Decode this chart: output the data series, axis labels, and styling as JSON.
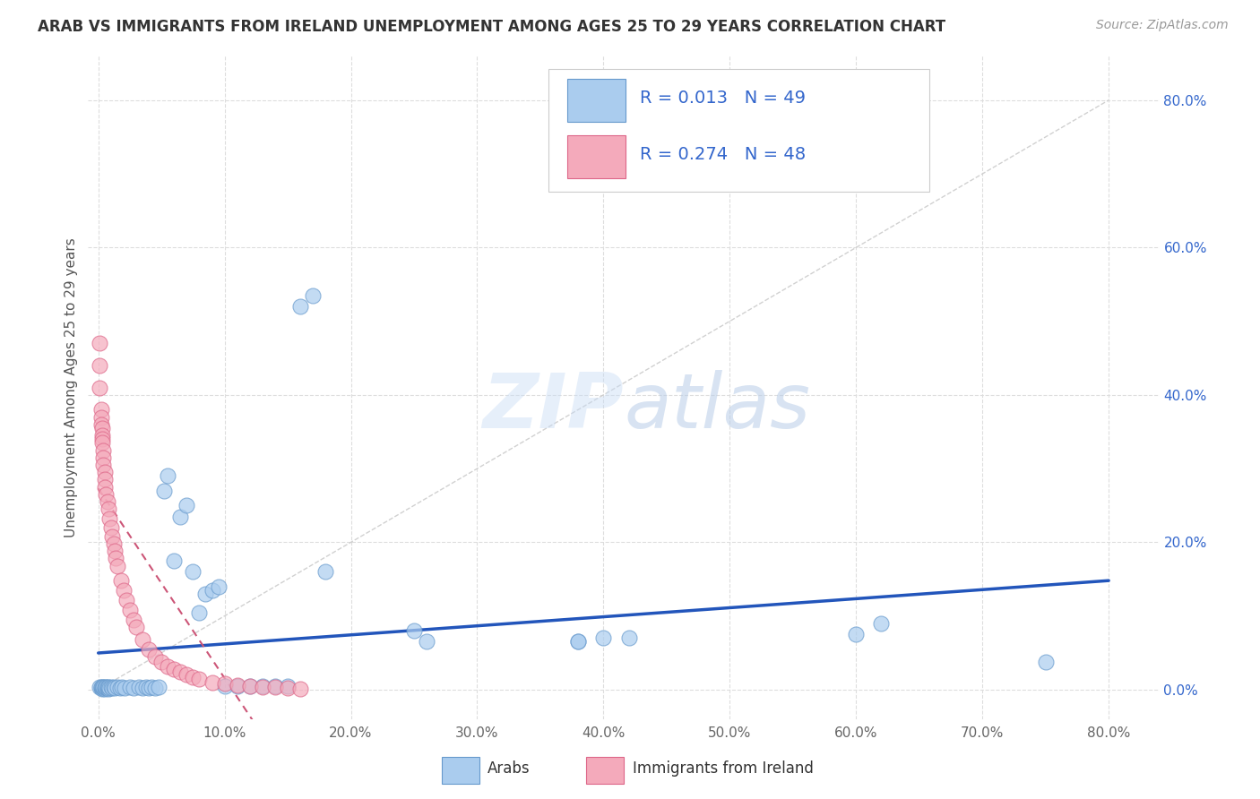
{
  "title": "ARAB VS IMMIGRANTS FROM IRELAND UNEMPLOYMENT AMONG AGES 25 TO 29 YEARS CORRELATION CHART",
  "source": "Source: ZipAtlas.com",
  "ylabel": "Unemployment Among Ages 25 to 29 years",
  "xlim_min": -0.008,
  "xlim_max": 0.84,
  "ylim_min": -0.04,
  "ylim_max": 0.86,
  "xtick_vals": [
    0.0,
    0.1,
    0.2,
    0.3,
    0.4,
    0.5,
    0.6,
    0.7,
    0.8
  ],
  "ytick_vals": [
    0.0,
    0.2,
    0.4,
    0.6,
    0.8
  ],
  "legend_text_color": "#3366CC",
  "arab_color": "#AACCEE",
  "ireland_color": "#F4AABB",
  "arab_edge_color": "#6699CC",
  "ireland_edge_color": "#DD6688",
  "regression_arab_color": "#2255BB",
  "regression_ireland_color": "#CC5577",
  "identity_line_color": "#CCCCCC",
  "background_color": "#FFFFFF",
  "grid_color": "#DDDDDD",
  "watermark_zip": "ZIP",
  "watermark_atlas": "atlas",
  "arab_x": [
    0.001,
    0.002,
    0.002,
    0.003,
    0.003,
    0.004,
    0.004,
    0.005,
    0.005,
    0.006,
    0.006,
    0.007,
    0.007,
    0.008,
    0.008,
    0.009,
    0.01,
    0.011,
    0.012,
    0.013,
    0.015,
    0.017,
    0.019,
    0.021,
    0.025,
    0.028,
    0.032,
    0.035,
    0.038,
    0.04,
    0.042,
    0.045,
    0.048,
    0.052,
    0.055,
    0.06,
    0.065,
    0.07,
    0.075,
    0.08,
    0.085,
    0.09,
    0.095,
    0.1,
    0.11,
    0.12,
    0.13,
    0.14,
    0.15,
    0.16,
    0.17,
    0.18,
    0.25,
    0.26,
    0.38,
    0.4,
    0.38,
    0.42,
    0.6,
    0.62,
    0.75
  ],
  "arab_y": [
    0.003,
    0.002,
    0.004,
    0.001,
    0.003,
    0.002,
    0.004,
    0.001,
    0.003,
    0.002,
    0.004,
    0.002,
    0.003,
    0.001,
    0.004,
    0.002,
    0.003,
    0.002,
    0.004,
    0.002,
    0.003,
    0.002,
    0.004,
    0.002,
    0.003,
    0.002,
    0.004,
    0.002,
    0.003,
    0.002,
    0.004,
    0.002,
    0.003,
    0.27,
    0.29,
    0.175,
    0.235,
    0.25,
    0.16,
    0.105,
    0.13,
    0.135,
    0.14,
    0.005,
    0.005,
    0.005,
    0.005,
    0.005,
    0.005,
    0.52,
    0.535,
    0.16,
    0.08,
    0.065,
    0.065,
    0.07,
    0.065,
    0.07,
    0.075,
    0.09,
    0.038
  ],
  "ireland_x": [
    0.001,
    0.001,
    0.001,
    0.002,
    0.002,
    0.002,
    0.003,
    0.003,
    0.003,
    0.003,
    0.004,
    0.004,
    0.004,
    0.005,
    0.005,
    0.005,
    0.006,
    0.007,
    0.008,
    0.009,
    0.01,
    0.011,
    0.012,
    0.013,
    0.014,
    0.015,
    0.018,
    0.02,
    0.022,
    0.025,
    0.028,
    0.03,
    0.035,
    0.04,
    0.045,
    0.05,
    0.055,
    0.06,
    0.065,
    0.07,
    0.075,
    0.08,
    0.09,
    0.1,
    0.11,
    0.12,
    0.13,
    0.14,
    0.15,
    0.16
  ],
  "ireland_y": [
    0.47,
    0.44,
    0.41,
    0.38,
    0.37,
    0.36,
    0.355,
    0.345,
    0.34,
    0.335,
    0.325,
    0.315,
    0.305,
    0.295,
    0.285,
    0.275,
    0.265,
    0.255,
    0.245,
    0.232,
    0.22,
    0.208,
    0.198,
    0.188,
    0.178,
    0.168,
    0.148,
    0.135,
    0.122,
    0.108,
    0.095,
    0.085,
    0.068,
    0.055,
    0.045,
    0.038,
    0.032,
    0.028,
    0.024,
    0.02,
    0.017,
    0.015,
    0.01,
    0.008,
    0.006,
    0.005,
    0.004,
    0.003,
    0.002,
    0.001
  ]
}
